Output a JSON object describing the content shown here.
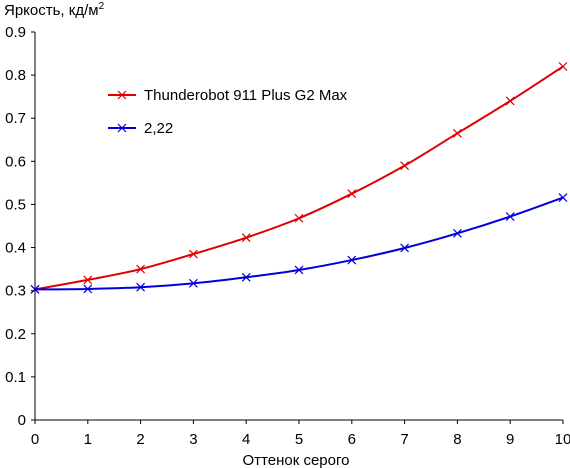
{
  "chart_data": {
    "type": "line",
    "title": "",
    "ylabel": "Яркость, кд/м",
    "ylabel_sup": "2",
    "xlabel": "Оттенок серого",
    "xlim": [
      0,
      10
    ],
    "ylim": [
      0,
      0.9
    ],
    "x": [
      0,
      1,
      2,
      3,
      4,
      5,
      6,
      7,
      8,
      9,
      10
    ],
    "x_ticks": [
      "0",
      "1",
      "2",
      "3",
      "4",
      "5",
      "6",
      "7",
      "8",
      "9",
      "10"
    ],
    "y_ticks": [
      "0",
      "0.1",
      "0.2",
      "0.3",
      "0.4",
      "0.5",
      "0.6",
      "0.7",
      "0.8",
      "0.9"
    ],
    "y_tick_values": [
      0,
      0.1,
      0.2,
      0.3,
      0.4,
      0.5,
      0.6,
      0.7,
      0.8,
      0.9
    ],
    "grid": false,
    "legend_position": "top-left",
    "series": [
      {
        "name": "Thunderobot 911 Plus G2 Max",
        "color": "#e00000",
        "marker": "x",
        "values": [
          0.303,
          0.325,
          0.35,
          0.385,
          0.423,
          0.468,
          0.525,
          0.59,
          0.665,
          0.74,
          0.82
        ]
      },
      {
        "name": "2,22",
        "color": "#0000dd",
        "marker": "x",
        "values": [
          0.303,
          0.304,
          0.308,
          0.317,
          0.331,
          0.348,
          0.371,
          0.399,
          0.433,
          0.472,
          0.516
        ]
      }
    ]
  }
}
